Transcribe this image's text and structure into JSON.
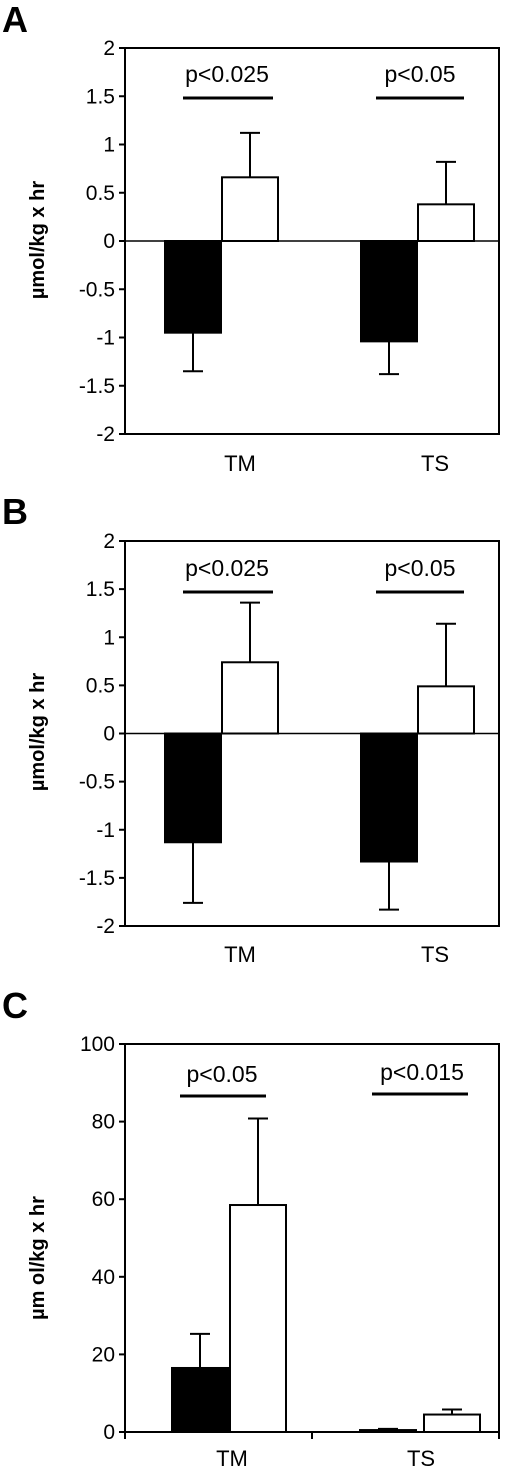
{
  "chart_data": [
    {
      "panel": "A",
      "type": "bar",
      "categories": [
        "TM",
        "TS"
      ],
      "ylabel": "µmol/kg x hr",
      "ylim": [
        -2,
        2
      ],
      "yticks": [
        "2",
        "1.5",
        "1",
        "0.5",
        "0",
        "-0.5",
        "-1",
        "-1.5",
        "-2"
      ],
      "series": [
        {
          "fill": "#000000",
          "values": [
            -0.95,
            -1.04
          ],
          "errors": [
            0.4,
            0.34
          ]
        },
        {
          "fill": "#ffffff",
          "values": [
            0.66,
            0.38
          ],
          "errors": [
            0.46,
            0.44
          ]
        }
      ],
      "annotations": [
        "p<0.025",
        "p<0.05"
      ]
    },
    {
      "panel": "B",
      "type": "bar",
      "categories": [
        "TM",
        "TS"
      ],
      "ylabel": "µmol/kg x hr",
      "ylim": [
        -2,
        2
      ],
      "yticks": [
        "2",
        "1.5",
        "1",
        "0.5",
        "0",
        "-0.5",
        "-1",
        "-1.5",
        "-2"
      ],
      "series": [
        {
          "fill": "#000000",
          "values": [
            -1.13,
            -1.33
          ],
          "errors": [
            0.63,
            0.5
          ]
        },
        {
          "fill": "#ffffff",
          "values": [
            0.74,
            0.49
          ],
          "errors": [
            0.62,
            0.65
          ]
        }
      ],
      "annotations": [
        "p<0.025",
        "p<0.05"
      ]
    },
    {
      "panel": "C",
      "type": "bar",
      "categories": [
        "TM",
        "TS"
      ],
      "ylabel": "µm ol/kg x hr",
      "ylim": [
        0,
        100
      ],
      "yticks": [
        "100",
        "80",
        "60",
        "40",
        "20",
        "0"
      ],
      "series": [
        {
          "fill": "#000000",
          "values": [
            16.5,
            0.5
          ],
          "errors": [
            8.8,
            0.3
          ]
        },
        {
          "fill": "#ffffff",
          "values": [
            58.5,
            4.5
          ],
          "errors": [
            22.3,
            1.3
          ]
        }
      ],
      "annotations": [
        "p<0.05",
        "p<0.015"
      ]
    }
  ]
}
